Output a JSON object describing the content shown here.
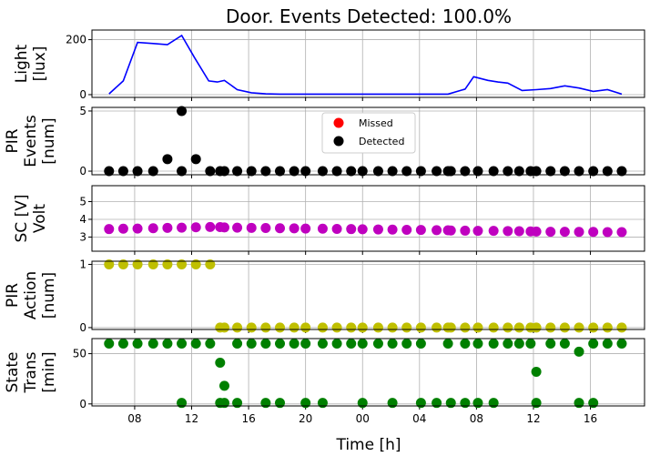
{
  "chart_data": {
    "title": "Door. Events Detected: 100.0%",
    "xlabel": "Time [h]",
    "x_ticks": [
      "08",
      "12",
      "16",
      "20",
      "00",
      "04",
      "08",
      "12",
      "16"
    ],
    "x_tick_hours": [
      8,
      12,
      16,
      20,
      24,
      28,
      32,
      36,
      40
    ],
    "xlim_hours": [
      5.0,
      43.8
    ],
    "grid": true,
    "panels": [
      {
        "type": "line",
        "ylabel": [
          "Light",
          "[lux]"
        ],
        "ylim": [
          -10,
          235
        ],
        "yticks": [
          0,
          200
        ],
        "yticklabels": [
          "0",
          "200"
        ],
        "color": "#0000ff",
        "x": [
          6.2,
          7.2,
          8.2,
          9.3,
          10.3,
          11.3,
          12.2,
          13.2,
          13.8,
          14.3,
          15.2,
          16.2,
          17.2,
          18.2,
          20.0,
          22.0,
          24.0,
          26.0,
          28.0,
          30.0,
          31.2,
          31.8,
          32.8,
          33.5,
          34.2,
          35.2,
          36.2,
          37.2,
          38.2,
          39.2,
          40.2,
          41.2,
          42.2
        ],
        "y": [
          3,
          50,
          190,
          186,
          182,
          215,
          135,
          50,
          46,
          52,
          18,
          7,
          3,
          2,
          2,
          2,
          2,
          2,
          2,
          2,
          20,
          65,
          52,
          46,
          42,
          15,
          18,
          22,
          32,
          24,
          12,
          18,
          2
        ]
      },
      {
        "type": "scatter",
        "ylabel": [
          "PIR",
          "Events",
          "[num]"
        ],
        "ylim": [
          -0.3,
          5.3
        ],
        "yticks": [
          0,
          5
        ],
        "yticklabels": [
          "0",
          "5"
        ],
        "legend": {
          "entries": [
            "Missed",
            "Detected"
          ],
          "colors": [
            "#ff0000",
            "#000000"
          ],
          "placement": "upper center"
        },
        "series": [
          {
            "name": "Missed",
            "color": "#ff0000",
            "x": [],
            "y": []
          },
          {
            "name": "Detected",
            "color": "#000000",
            "x": [
              6.2,
              7.2,
              8.2,
              9.3,
              10.3,
              11.3,
              11.3,
              12.3,
              13.3,
              14.0,
              14.3,
              15.2,
              16.2,
              17.2,
              18.2,
              19.2,
              20.0,
              21.2,
              22.2,
              23.2,
              24.0,
              25.1,
              26.1,
              27.1,
              28.1,
              29.2,
              30.0,
              30.2,
              31.2,
              32.1,
              33.2,
              34.2,
              35.0,
              35.8,
              36.2,
              37.2,
              38.2,
              39.2,
              40.2,
              41.2,
              42.2
            ],
            "y": [
              0,
              0,
              0,
              0,
              1,
              5,
              0,
              1,
              0,
              0,
              0,
              0,
              0,
              0,
              0,
              0,
              0,
              0,
              0,
              0,
              0,
              0,
              0,
              0,
              0,
              0,
              0,
              0,
              0,
              0,
              0,
              0,
              0,
              0,
              0,
              0,
              0,
              0,
              0,
              0,
              0
            ]
          }
        ]
      },
      {
        "type": "scatter",
        "ylabel": [
          "SC [V]",
          "Volt"
        ],
        "ylim": [
          2.2,
          5.9
        ],
        "yticks": [
          3,
          4,
          5
        ],
        "yticklabels": [
          "3",
          "4",
          "5"
        ],
        "color": "#bf00bf",
        "x": [
          6.2,
          7.2,
          8.2,
          9.3,
          10.3,
          11.3,
          12.3,
          13.3,
          14.0,
          14.3,
          15.2,
          16.2,
          17.2,
          18.2,
          19.2,
          20.0,
          21.2,
          22.2,
          23.2,
          24.0,
          25.1,
          26.1,
          27.1,
          28.1,
          29.2,
          30.0,
          30.2,
          31.2,
          32.1,
          33.2,
          34.2,
          35.0,
          35.8,
          36.2,
          37.2,
          38.2,
          39.2,
          40.2,
          41.2,
          42.2
        ],
        "y": [
          3.45,
          3.47,
          3.48,
          3.5,
          3.52,
          3.53,
          3.55,
          3.57,
          3.56,
          3.54,
          3.53,
          3.52,
          3.51,
          3.5,
          3.49,
          3.48,
          3.47,
          3.46,
          3.45,
          3.44,
          3.43,
          3.42,
          3.41,
          3.4,
          3.39,
          3.38,
          3.37,
          3.36,
          3.35,
          3.35,
          3.34,
          3.33,
          3.32,
          3.31,
          3.3,
          3.3,
          3.29,
          3.29,
          3.28,
          3.28
        ]
      },
      {
        "type": "scatter",
        "ylabel": [
          "PIR",
          "Action",
          "[num]"
        ],
        "ylim": [
          -0.03,
          1.05
        ],
        "yticks": [
          0,
          1
        ],
        "yticklabels": [
          "0",
          "1"
        ],
        "color": "#bfbf00",
        "x": [
          6.2,
          7.2,
          8.2,
          9.3,
          10.3,
          11.3,
          12.3,
          13.3,
          14.0,
          14.3,
          15.2,
          16.2,
          17.2,
          18.2,
          19.2,
          20.0,
          21.2,
          22.2,
          23.2,
          24.0,
          25.1,
          26.1,
          27.1,
          28.1,
          29.2,
          30.0,
          30.2,
          31.2,
          32.1,
          33.2,
          34.2,
          35.0,
          35.8,
          36.2,
          37.2,
          38.2,
          39.2,
          40.2,
          41.2,
          42.2
        ],
        "y": [
          1,
          1,
          1,
          1,
          1,
          1,
          1,
          1,
          0,
          0,
          0,
          0,
          0,
          0,
          0,
          0,
          0,
          0,
          0,
          0,
          0,
          0,
          0,
          0,
          0,
          0,
          0,
          0,
          0,
          0,
          0,
          0,
          0,
          0,
          0,
          0,
          0,
          0,
          0,
          0
        ]
      },
      {
        "type": "scatter",
        "ylabel": [
          "State",
          "Trans",
          "[min]"
        ],
        "ylim": [
          -2,
          65
        ],
        "yticks": [
          0,
          50
        ],
        "yticklabels": [
          "0",
          "50"
        ],
        "color": "#008000",
        "x": [
          6.2,
          7.2,
          8.2,
          9.3,
          10.3,
          11.3,
          11.3,
          12.3,
          13.3,
          14.0,
          14.0,
          14.3,
          14.3,
          15.2,
          15.2,
          16.2,
          17.2,
          17.2,
          18.2,
          18.2,
          19.2,
          20.0,
          20.0,
          21.2,
          21.2,
          22.2,
          23.2,
          24.0,
          24.0,
          25.1,
          26.1,
          26.1,
          27.1,
          28.1,
          28.1,
          29.2,
          30.0,
          30.2,
          31.2,
          31.2,
          32.1,
          32.1,
          33.2,
          33.2,
          34.2,
          35.0,
          35.8,
          36.2,
          36.2,
          37.2,
          38.2,
          39.2,
          39.2,
          40.2,
          40.2,
          41.2,
          42.2
        ],
        "y": [
          60,
          60,
          60,
          60,
          60,
          60,
          1,
          60,
          60,
          41,
          1,
          18,
          1,
          60,
          1,
          60,
          60,
          1,
          60,
          1,
          60,
          60,
          1,
          60,
          1,
          60,
          60,
          60,
          1,
          60,
          60,
          1,
          60,
          60,
          1,
          1,
          60,
          1,
          60,
          1,
          60,
          1,
          60,
          1,
          60,
          60,
          60,
          32,
          1,
          60,
          60,
          52,
          1,
          60,
          1,
          60,
          60
        ]
      }
    ]
  }
}
